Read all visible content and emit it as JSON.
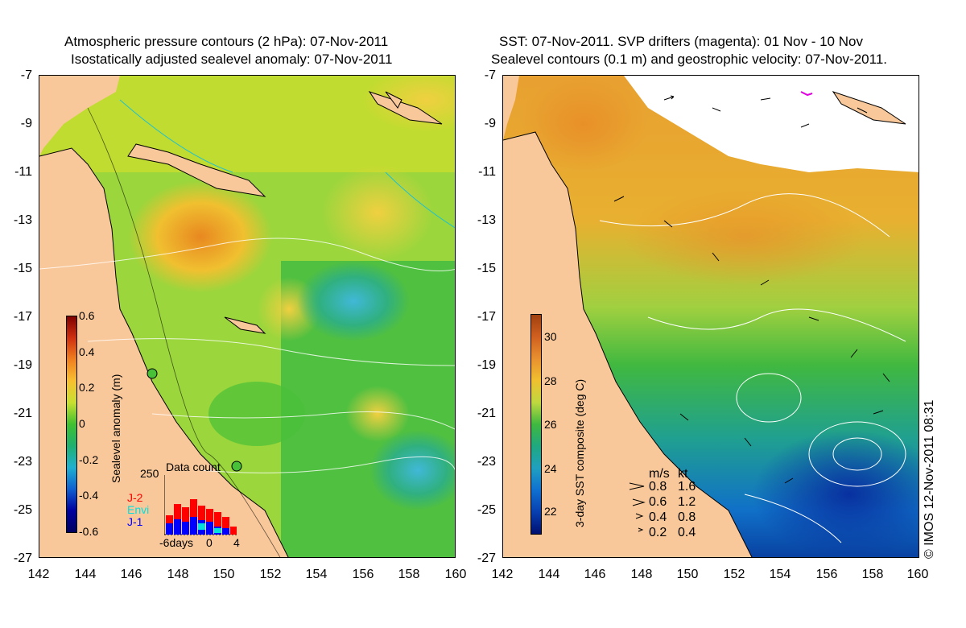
{
  "left_panel": {
    "title_line1": "Atmospheric pressure contours (2 hPa): 07-Nov-2011",
    "title_line2": "Isostatically adjusted sealevel anomaly: 07-Nov-2011",
    "colorbar_label": "Sealevel anomaly (m)",
    "colorbar_ticks": [
      "0.6",
      "0.4",
      "0.2",
      "0",
      "-0.2",
      "-0.4",
      "-0.6"
    ],
    "inset": {
      "title": "Data count",
      "ymax_label": "250",
      "x_labels": [
        "-6days",
        "0",
        "4"
      ],
      "legend": [
        {
          "label": "J-2",
          "color": "#ff0000"
        },
        {
          "label": "Envi",
          "color": "#00e0e0"
        },
        {
          "label": "J-1",
          "color": "#0000ff"
        }
      ]
    }
  },
  "right_panel": {
    "title_line1": "SST: 07-Nov-2011. SVP drifters (magenta): 01 Nov - 10 Nov",
    "title_line2": "Sealevel contours (0.1 m) and geostrophic velocity: 07-Nov-2011.",
    "colorbar_label": "3-day SST composite (deg C)",
    "colorbar_ticks": [
      "30",
      "28",
      "26",
      "24",
      "22"
    ],
    "velocity_legend": {
      "header_ms": "m/s",
      "header_kt": "kt",
      "rows": [
        {
          "ms": "0.8",
          "kt": "1.6"
        },
        {
          "ms": "0.6",
          "kt": "1.2"
        },
        {
          "ms": "0.4",
          "kt": "0.8"
        },
        {
          "ms": "0.2",
          "kt": "0.4"
        }
      ]
    },
    "copyright": "© IMOS 12-Nov-2011 08:31"
  },
  "axes": {
    "y_ticks": [
      "-7",
      "-9",
      "-11",
      "-13",
      "-15",
      "-17",
      "-19",
      "-21",
      "-23",
      "-25",
      "-27"
    ],
    "x_ticks": [
      "142",
      "144",
      "146",
      "148",
      "150",
      "152",
      "154",
      "156",
      "158",
      "160"
    ]
  },
  "colors": {
    "land": "#f9c89a",
    "sla_high": "#e89020",
    "sla_mid": "#a8d840",
    "sla_zero": "#48c030",
    "sla_low": "#20a0c0",
    "sst_warm": "#e8a030",
    "sst_mid": "#40b840",
    "sst_cool": "#1060c0"
  }
}
